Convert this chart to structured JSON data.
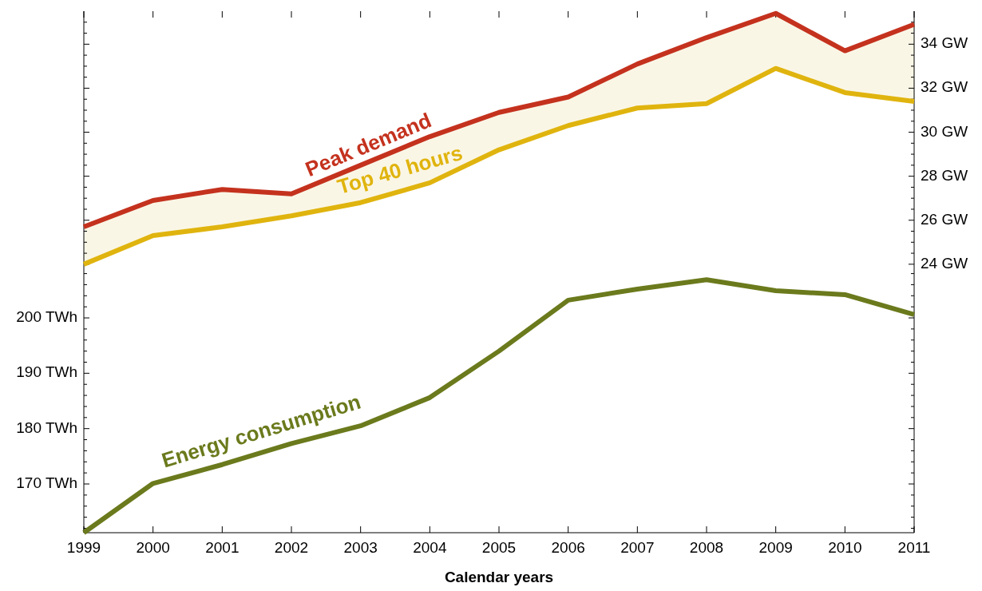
{
  "chart_data": {
    "type": "line",
    "x": [
      1999,
      2000,
      2001,
      2002,
      2003,
      2004,
      2005,
      2006,
      2007,
      2008,
      2009,
      2010,
      2011
    ],
    "series": [
      {
        "name": "Peak demand",
        "color": "#c4321e",
        "axis": "y2",
        "values": [
          25.7,
          26.9,
          27.4,
          27.2,
          28.5,
          29.8,
          30.9,
          31.6,
          33.1,
          34.3,
          35.4,
          33.7,
          34.9
        ],
        "lower": [
          24.0,
          25.3,
          25.7,
          26.2,
          26.8,
          27.7,
          29.2,
          30.3,
          31.1,
          31.3,
          32.9,
          31.8,
          31.4
        ],
        "upper": [
          25.7,
          26.9,
          27.4,
          27.2,
          28.5,
          29.8,
          30.9,
          31.6,
          33.1,
          34.3,
          35.4,
          33.7,
          34.9
        ]
      },
      {
        "name": "Top 40 hours",
        "color": "#e0b40e",
        "axis": "y2",
        "values": [
          24.0,
          25.3,
          25.7,
          26.2,
          26.8,
          27.7,
          29.2,
          30.3,
          31.1,
          31.3,
          32.9,
          31.8,
          31.4
        ]
      },
      {
        "name": "Energy consumption",
        "color": "#6b7a1c",
        "values": [
          161.2,
          170.1,
          173.5,
          177.3,
          180.5,
          185.6,
          194.0,
          203.2,
          205.2,
          206.9,
          204.9,
          204.2,
          200.6
        ]
      }
    ],
    "xlabel": "Calendar years",
    "xlim": [
      1999,
      2011
    ],
    "xticks": [
      1999,
      2000,
      2001,
      2002,
      2003,
      2004,
      2005,
      2006,
      2007,
      2008,
      2009,
      2010,
      2011
    ],
    "ylim": [
      161.2,
      255.4
    ],
    "yticks": [
      {
        "value": 162,
        "label": null
      },
      {
        "value": 164,
        "label": null
      },
      {
        "value": 166,
        "label": null
      },
      {
        "value": 168,
        "label": null
      },
      {
        "value": 170,
        "label": "170 TWh"
      },
      {
        "value": 172,
        "label": null
      },
      {
        "value": 174,
        "label": null
      },
      {
        "value": 176,
        "label": null
      },
      {
        "value": 178,
        "label": null
      },
      {
        "value": 180,
        "label": "180 TWh"
      },
      {
        "value": 182,
        "label": null
      },
      {
        "value": 184,
        "label": null
      },
      {
        "value": 186,
        "label": null
      },
      {
        "value": 188,
        "label": null
      },
      {
        "value": 190,
        "label": "190 TWh"
      },
      {
        "value": 192,
        "label": null
      },
      {
        "value": 194,
        "label": null
      },
      {
        "value": 196,
        "label": null
      },
      {
        "value": 198,
        "label": null
      },
      {
        "value": 200,
        "label": "200 TWh"
      },
      {
        "value": 202,
        "label": null
      },
      {
        "value": 204,
        "label": null
      },
      {
        "value": 206,
        "label": null
      },
      {
        "value": 208,
        "label": null
      }
    ],
    "y2lim": [
      11.8,
      35.5
    ],
    "y2ticks": [
      {
        "value": 24,
        "label": "24 GW"
      },
      {
        "value": 24.5,
        "label": null
      },
      {
        "value": 25,
        "label": null
      },
      {
        "value": 25.5,
        "label": null
      },
      {
        "value": 26,
        "label": "26 GW"
      },
      {
        "value": 26.5,
        "label": null
      },
      {
        "value": 27,
        "label": null
      },
      {
        "value": 27.5,
        "label": null
      },
      {
        "value": 28,
        "label": "28 GW"
      },
      {
        "value": 28.5,
        "label": null
      },
      {
        "value": 29,
        "label": null
      },
      {
        "value": 29.5,
        "label": null
      },
      {
        "value": 30,
        "label": "30 GW"
      },
      {
        "value": 30.5,
        "label": null
      },
      {
        "value": 31,
        "label": null
      },
      {
        "value": 31.5,
        "label": null
      },
      {
        "value": 32,
        "label": "32 GW"
      },
      {
        "value": 32.5,
        "label": null
      },
      {
        "value": 33,
        "label": null
      },
      {
        "value": 33.5,
        "label": null
      },
      {
        "value": 34,
        "label": "34 GW"
      },
      {
        "value": 34.5,
        "label": null
      },
      {
        "value": 35,
        "label": null
      }
    ],
    "grid": false,
    "legend": false
  }
}
